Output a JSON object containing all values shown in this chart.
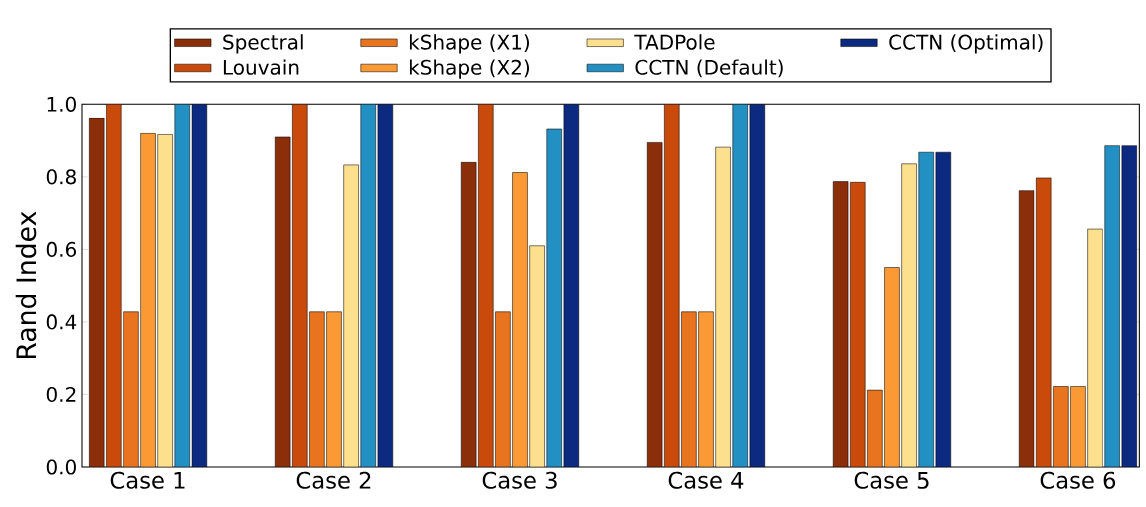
{
  "chart_data": {
    "type": "bar",
    "ylabel": "Rand Index",
    "categories": [
      "Case 1",
      "Case 2",
      "Case 3",
      "Case 4",
      "Case 5",
      "Case 6"
    ],
    "series": [
      {
        "name": "Spectral",
        "color": "#8b2e0a",
        "values": [
          0.962,
          0.91,
          0.84,
          0.895,
          0.787,
          0.762
        ]
      },
      {
        "name": "Louvain",
        "color": "#c94a0a",
        "values": [
          1.0,
          1.0,
          1.0,
          1.0,
          0.785,
          0.797
        ]
      },
      {
        "name": "kShape (X1)",
        "color": "#e8741f",
        "values": [
          0.428,
          0.428,
          0.428,
          0.428,
          0.212,
          0.222
        ]
      },
      {
        "name": "kShape (X2)",
        "color": "#fb9a35",
        "values": [
          0.92,
          0.428,
          0.812,
          0.428,
          0.55,
          0.222
        ]
      },
      {
        "name": "TADPole",
        "color": "#fde08e",
        "values": [
          0.917,
          0.833,
          0.61,
          0.882,
          0.836,
          0.656
        ]
      },
      {
        "name": "CCTN (Default)",
        "color": "#2390c4",
        "values": [
          1.0,
          1.0,
          0.932,
          1.0,
          0.868,
          0.886
        ]
      },
      {
        "name": "CCTN (Optimal)",
        "color": "#0c2a80",
        "values": [
          1.0,
          1.0,
          1.0,
          1.0,
          0.868,
          0.886
        ]
      }
    ],
    "ylim": [
      0,
      1
    ],
    "yticks": [
      {
        "value": 0,
        "label": "0.0"
      },
      0.2,
      0.4,
      0.6,
      0.8,
      {
        "value": 1,
        "label": "1.0"
      }
    ],
    "grid": false,
    "legend": "top"
  }
}
